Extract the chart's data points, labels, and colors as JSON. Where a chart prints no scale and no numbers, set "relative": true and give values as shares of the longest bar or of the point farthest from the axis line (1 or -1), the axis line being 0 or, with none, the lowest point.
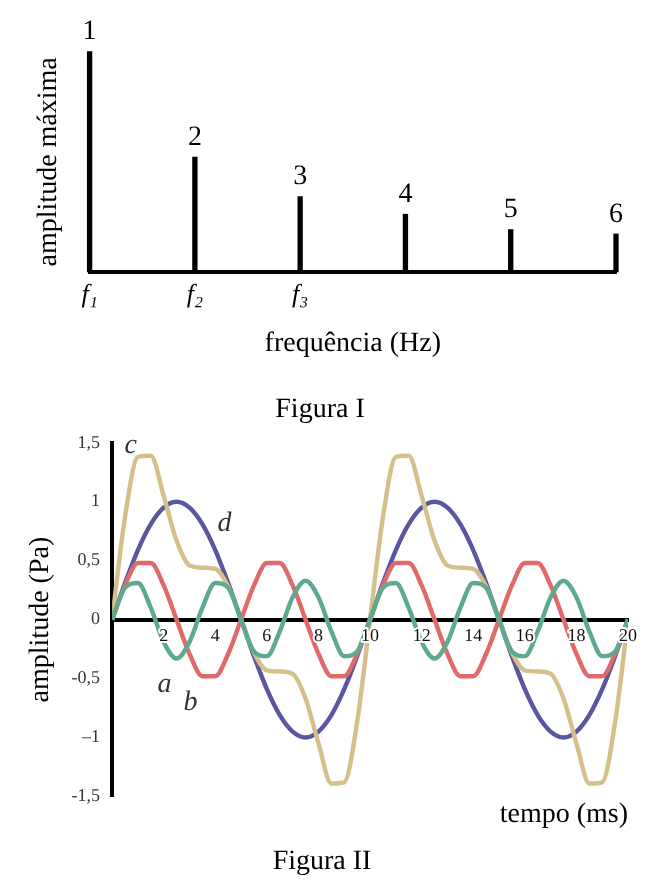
{
  "chart_data": [
    {
      "type": "bar",
      "title": "Figura I",
      "xlabel": "frequência (Hz)",
      "ylabel": "amplitude máxima",
      "categories": [
        "f₁",
        "f₂",
        "f₃",
        null,
        null,
        null
      ],
      "values": [
        1,
        0.52,
        0.34,
        0.26,
        0.19,
        0.17
      ],
      "annotations": [
        "1",
        "2",
        "3",
        "4",
        "5",
        "6"
      ],
      "color": "#000000",
      "relative": true,
      "grid": false,
      "legend": false
    },
    {
      "type": "line",
      "title": "Figura II",
      "xlabel": "tempo (ms)",
      "ylabel": "amplitude (Pa)",
      "x": [
        0,
        0.5,
        1,
        1.5,
        2,
        2.5,
        3,
        3.5,
        4,
        4.5,
        5,
        5.5,
        6,
        6.5,
        7,
        7.5,
        8,
        8.5,
        9,
        9.5,
        10,
        10.5,
        11,
        11.5,
        12,
        12.5,
        13,
        13.5,
        14,
        14.5,
        15,
        15.5,
        16,
        16.5,
        17,
        17.5,
        18,
        18.5,
        19,
        19.5,
        20
      ],
      "series": [
        {
          "name": "a",
          "color": "#5fa98f",
          "values": [
            0,
            0.27,
            0.31,
            0.1,
            -0.19,
            -0.33,
            -0.19,
            0.1,
            0.31,
            0.27,
            0,
            -0.27,
            -0.31,
            -0.1,
            0.19,
            0.33,
            0.19,
            -0.1,
            -0.31,
            -0.27,
            0,
            0.27,
            0.31,
            0.1,
            -0.19,
            -0.33,
            -0.19,
            0.1,
            0.31,
            0.27,
            0,
            -0.27,
            -0.31,
            -0.1,
            0.19,
            0.33,
            0.19,
            -0.1,
            -0.31,
            -0.27,
            0
          ]
        },
        {
          "name": "b",
          "color": "#e06a6a",
          "values": [
            0,
            0.29,
            0.48,
            0.48,
            0.29,
            0,
            -0.29,
            -0.48,
            -0.48,
            -0.29,
            0,
            0.29,
            0.48,
            0.48,
            0.29,
            0,
            -0.29,
            -0.48,
            -0.48,
            -0.29,
            0,
            0.29,
            0.48,
            0.48,
            0.29,
            0,
            -0.29,
            -0.48,
            -0.48,
            -0.29,
            0,
            0.29,
            0.48,
            0.48,
            0.29,
            0,
            -0.29,
            -0.48,
            -0.48,
            -0.29,
            0
          ]
        },
        {
          "name": "c",
          "color": "#d4c08a",
          "values": [
            0,
            0.87,
            1.38,
            1.39,
            1.05,
            0.67,
            0.46,
            0.44,
            0.43,
            0.28,
            0,
            -0.28,
            -0.43,
            -0.44,
            -0.46,
            -0.67,
            -1.05,
            -1.39,
            -1.38,
            -0.87,
            0,
            0.87,
            1.38,
            1.39,
            1.05,
            0.67,
            0.46,
            0.44,
            0.43,
            0.28,
            0,
            -0.28,
            -0.43,
            -0.44,
            -0.46,
            -0.67,
            -1.05,
            -1.39,
            -1.38,
            -0.87,
            0
          ]
        },
        {
          "name": "d",
          "color": "#5a56a0",
          "values": [
            0,
            0.31,
            0.59,
            0.81,
            0.95,
            1,
            0.95,
            0.81,
            0.59,
            0.31,
            0,
            -0.31,
            -0.59,
            -0.81,
            -0.95,
            -1,
            -0.95,
            -0.81,
            -0.59,
            -0.31,
            0,
            0.31,
            0.59,
            0.81,
            0.95,
            1,
            0.95,
            0.81,
            0.59,
            0.31,
            0,
            -0.31,
            -0.59,
            -0.81,
            -0.95,
            -1,
            -0.95,
            -0.81,
            -0.59,
            -0.31,
            0
          ]
        }
      ],
      "xlim": [
        0,
        20
      ],
      "xticks": [
        2,
        4,
        6,
        8,
        10,
        12,
        14,
        16,
        18,
        20
      ],
      "ylim": [
        -1.5,
        1.5
      ],
      "yticks": [
        {
          "value": -1.5,
          "label": "-1,5"
        },
        {
          "value": -1,
          "label": "–1"
        },
        {
          "value": -0.5,
          "label": "-0,5"
        },
        0,
        {
          "value": 0.5,
          "label": "0,5"
        },
        1,
        {
          "value": 1.5,
          "label": "1,5"
        }
      ],
      "grid": false,
      "legend": false
    }
  ]
}
